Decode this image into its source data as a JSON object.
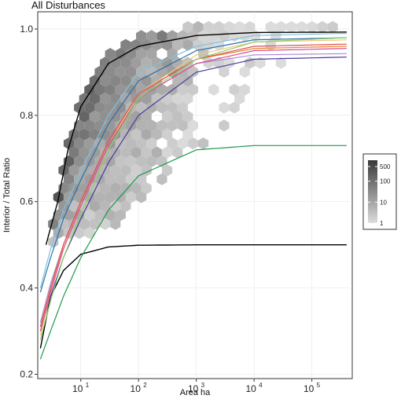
{
  "chart_data": {
    "type": "scatter",
    "subtype": "hexbin-density-with-fitted-curves",
    "title": "All Disturbances",
    "xlabel": "Area ha",
    "ylabel": "Interior / Total Ratio",
    "x_scale": "log10",
    "xlim": [
      1.8,
      500000
    ],
    "ylim": [
      0.19,
      1.04
    ],
    "x_ticks": [
      10,
      100,
      1000,
      10000,
      100000
    ],
    "x_tick_labels": [
      {
        "base": "10",
        "exp": "1"
      },
      {
        "base": "10",
        "exp": "2"
      },
      {
        "base": "10",
        "exp": "3"
      },
      {
        "base": "10",
        "exp": "4"
      },
      {
        "base": "10",
        "exp": "5"
      }
    ],
    "y_ticks": [
      0.2,
      0.4,
      0.6,
      0.8,
      1.0
    ],
    "y_tick_labels": [
      "0.2",
      "0.4",
      "0.6",
      "0.8",
      "1.0"
    ],
    "grid": true,
    "legend": {
      "placement": "right",
      "scale": "log",
      "min": 1,
      "max": 1000,
      "ticks": [
        1,
        10,
        100,
        500
      ],
      "tick_labels": [
        "1",
        "10",
        "100",
        "500"
      ],
      "color_low": "#dcdcdc",
      "color_high": "#3a3a3a"
    },
    "hexbin_counts_approx": [
      {
        "x": 7,
        "y": 0.78,
        "count": 200
      },
      {
        "x": 20,
        "y": 0.7,
        "count": 300
      },
      {
        "x": 50,
        "y": 0.75,
        "count": 400
      },
      {
        "x": 30,
        "y": 0.55,
        "count": 40
      },
      {
        "x": 300,
        "y": 0.9,
        "count": 80
      },
      {
        "x": 5000,
        "y": 0.98,
        "count": 15
      },
      {
        "x": 3000,
        "y": 0.72,
        "count": 3
      },
      {
        "x": 20000,
        "y": 0.9,
        "count": 3
      },
      {
        "x": 300000,
        "y": 1.0,
        "count": 2
      }
    ],
    "series": [
      {
        "color": "#000000",
        "points": [
          [
            2,
            0.26
          ],
          [
            3,
            0.38
          ],
          [
            5,
            0.44
          ],
          [
            10,
            0.478
          ],
          [
            30,
            0.495
          ],
          [
            100,
            0.499
          ],
          [
            1000,
            0.5
          ],
          [
            400000,
            0.5
          ]
        ]
      },
      {
        "color": "#000000",
        "points": [
          [
            2.5,
            0.5
          ],
          [
            4,
            0.6
          ],
          [
            6,
            0.72
          ],
          [
            10,
            0.82
          ],
          [
            30,
            0.92
          ],
          [
            100,
            0.96
          ],
          [
            1000,
            0.985
          ],
          [
            10000,
            0.992
          ],
          [
            400000,
            0.993
          ]
        ]
      },
      {
        "color": "#1f9a4a",
        "points": [
          [
            2,
            0.235
          ],
          [
            3,
            0.3
          ],
          [
            5,
            0.38
          ],
          [
            10,
            0.47
          ],
          [
            30,
            0.58
          ],
          [
            100,
            0.66
          ],
          [
            1000,
            0.72
          ],
          [
            10000,
            0.73
          ],
          [
            400000,
            0.73
          ]
        ]
      },
      {
        "color": "#4a3a9a",
        "points": [
          [
            2,
            0.3
          ],
          [
            3,
            0.38
          ],
          [
            5,
            0.47
          ],
          [
            10,
            0.56
          ],
          [
            30,
            0.69
          ],
          [
            100,
            0.8
          ],
          [
            1000,
            0.9
          ],
          [
            10000,
            0.93
          ],
          [
            400000,
            0.935
          ]
        ]
      },
      {
        "color": "#a98fd6",
        "points": [
          [
            2,
            0.32
          ],
          [
            3,
            0.41
          ],
          [
            5,
            0.5
          ],
          [
            10,
            0.6
          ],
          [
            30,
            0.73
          ],
          [
            100,
            0.84
          ],
          [
            1000,
            0.92
          ],
          [
            10000,
            0.94
          ],
          [
            400000,
            0.943
          ]
        ]
      },
      {
        "color": "#e8842a",
        "points": [
          [
            2,
            0.31
          ],
          [
            3,
            0.4
          ],
          [
            5,
            0.5
          ],
          [
            10,
            0.6
          ],
          [
            30,
            0.74
          ],
          [
            100,
            0.85
          ],
          [
            1000,
            0.93
          ],
          [
            10000,
            0.955
          ],
          [
            400000,
            0.96
          ]
        ]
      },
      {
        "color": "#f0c77a",
        "points": [
          [
            2,
            0.29
          ],
          [
            3,
            0.39
          ],
          [
            5,
            0.49
          ],
          [
            10,
            0.59
          ],
          [
            30,
            0.73
          ],
          [
            100,
            0.85
          ],
          [
            1000,
            0.94
          ],
          [
            10000,
            0.97
          ],
          [
            400000,
            0.975
          ]
        ]
      },
      {
        "color": "#2c6fb0",
        "points": [
          [
            2,
            0.39
          ],
          [
            3,
            0.47
          ],
          [
            5,
            0.56
          ],
          [
            10,
            0.65
          ],
          [
            30,
            0.78
          ],
          [
            100,
            0.88
          ],
          [
            1000,
            0.95
          ],
          [
            10000,
            0.975
          ],
          [
            400000,
            0.98
          ]
        ]
      },
      {
        "color": "#7fc2dd",
        "points": [
          [
            2,
            0.4
          ],
          [
            3,
            0.49
          ],
          [
            5,
            0.58
          ],
          [
            10,
            0.67
          ],
          [
            30,
            0.8
          ],
          [
            100,
            0.9
          ],
          [
            1000,
            0.96
          ],
          [
            10000,
            0.985
          ],
          [
            400000,
            0.99
          ]
        ]
      },
      {
        "color": "#d94a8a",
        "points": [
          [
            2,
            0.3
          ],
          [
            3,
            0.39
          ],
          [
            5,
            0.49
          ],
          [
            10,
            0.59
          ],
          [
            30,
            0.73
          ],
          [
            100,
            0.84
          ],
          [
            1000,
            0.92
          ],
          [
            10000,
            0.95
          ],
          [
            400000,
            0.955
          ]
        ]
      },
      {
        "color": "#e05050",
        "points": [
          [
            2,
            0.31
          ],
          [
            3,
            0.4
          ],
          [
            5,
            0.5
          ],
          [
            10,
            0.6
          ],
          [
            30,
            0.74
          ],
          [
            100,
            0.85
          ],
          [
            1000,
            0.93
          ],
          [
            10000,
            0.96
          ],
          [
            400000,
            0.965
          ]
        ]
      },
      {
        "color": "#8ecf6a",
        "points": [
          [
            2,
            0.28
          ],
          [
            3,
            0.37
          ],
          [
            5,
            0.47
          ],
          [
            10,
            0.57
          ],
          [
            30,
            0.72
          ],
          [
            100,
            0.84
          ],
          [
            1000,
            0.93
          ],
          [
            10000,
            0.97
          ],
          [
            400000,
            0.98
          ]
        ]
      }
    ]
  }
}
